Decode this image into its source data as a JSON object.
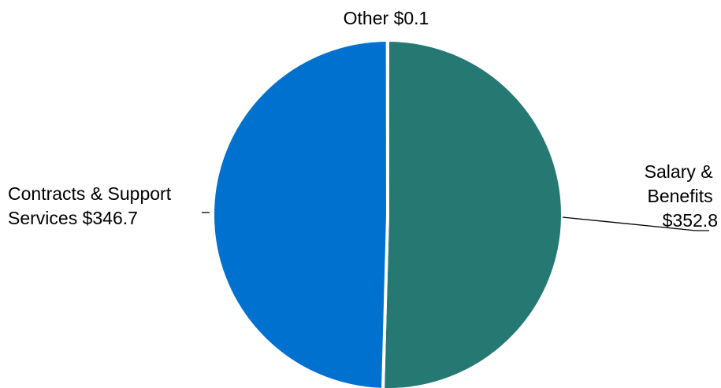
{
  "chart_data": {
    "type": "pie",
    "start_angle_deg": 0,
    "direction": "clockwise",
    "slices": [
      {
        "name": "Salary & Benefits",
        "value": 352.8,
        "color": "#267873",
        "label_lines": [
          "Salary &",
          "Benefits",
          "$352.8"
        ]
      },
      {
        "name": "Contracts & Support Services",
        "value": 346.7,
        "color": "#0071CE",
        "label_lines": [
          "Contracts & Support",
          "Services $346.7"
        ]
      },
      {
        "name": "Other",
        "value": 0.1,
        "color": "#FFFFFF",
        "label_lines": [
          "Other $0.1"
        ]
      }
    ]
  }
}
